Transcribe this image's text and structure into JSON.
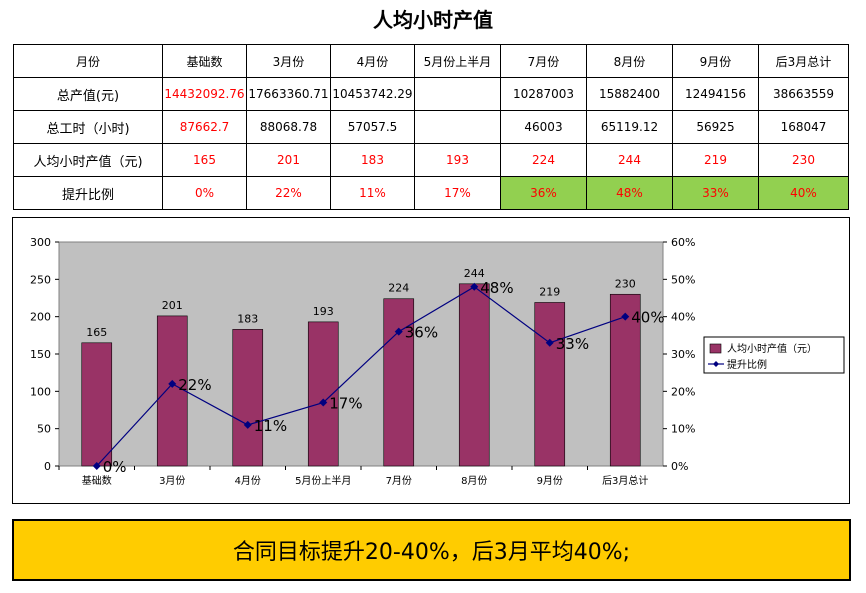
{
  "title": "人均小时产值",
  "table": {
    "header": [
      "月份",
      "基础数",
      "3月份",
      "4月份",
      "5月份上半月",
      "7月份",
      "8月份",
      "9月份",
      "后3月总计"
    ],
    "rows": [
      {
        "label": "总产值(元)",
        "cells": [
          "14432092.76",
          "17663360.71",
          "10453742.29",
          "",
          "10287003",
          "15882400",
          "12494156",
          "38663559"
        ]
      },
      {
        "label": "总工时（小时)",
        "cells": [
          "87662.7",
          "88068.78",
          "57057.5",
          "",
          "46003",
          "65119.12",
          "56925",
          "168047"
        ]
      },
      {
        "label": "人均小时产值（元)",
        "cells": [
          "165",
          "201",
          "183",
          "193",
          "224",
          "244",
          "219",
          "230"
        ]
      },
      {
        "label": "提升比例",
        "cells": [
          "0%",
          "22%",
          "11%",
          "17%",
          "36%",
          "48%",
          "33%",
          "40%"
        ]
      }
    ],
    "colors": {
      "red": "#ff0000",
      "highlight": "#92d050"
    }
  },
  "chart_data": {
    "type": "bar",
    "categories": [
      "基础数",
      "3月份",
      "4月份",
      "5月份上半月",
      "7月份",
      "8月份",
      "9月份",
      "后3月总计"
    ],
    "series": [
      {
        "name": "人均小时产值（元）",
        "type": "bar",
        "axis": "left",
        "color": "#993366",
        "values": [
          165,
          201,
          183,
          193,
          224,
          244,
          219,
          230
        ],
        "labels": [
          "165",
          "201",
          "183",
          "193",
          "224",
          "244",
          "219",
          "230"
        ]
      },
      {
        "name": "提升比例",
        "type": "line",
        "axis": "right",
        "color": "#000080",
        "values": [
          0,
          22,
          11,
          17,
          36,
          48,
          33,
          40
        ],
        "labels": [
          "0%",
          "22%",
          "11%",
          "17%",
          "36%",
          "48%",
          "33%",
          "40%"
        ]
      }
    ],
    "ylim": [
      0,
      300
    ],
    "yticks": [
      "0",
      "50",
      "100",
      "150",
      "200",
      "250",
      "300"
    ],
    "y2lim": [
      0,
      60
    ],
    "y2ticks": [
      "0%",
      "10%",
      "20%",
      "30%",
      "40%",
      "50%",
      "60%"
    ],
    "plot_background": "#c0c0c0",
    "grid": false,
    "legend_position": "right"
  },
  "footer": {
    "text": "合同目标提升20-40%，后3月平均40%;"
  }
}
